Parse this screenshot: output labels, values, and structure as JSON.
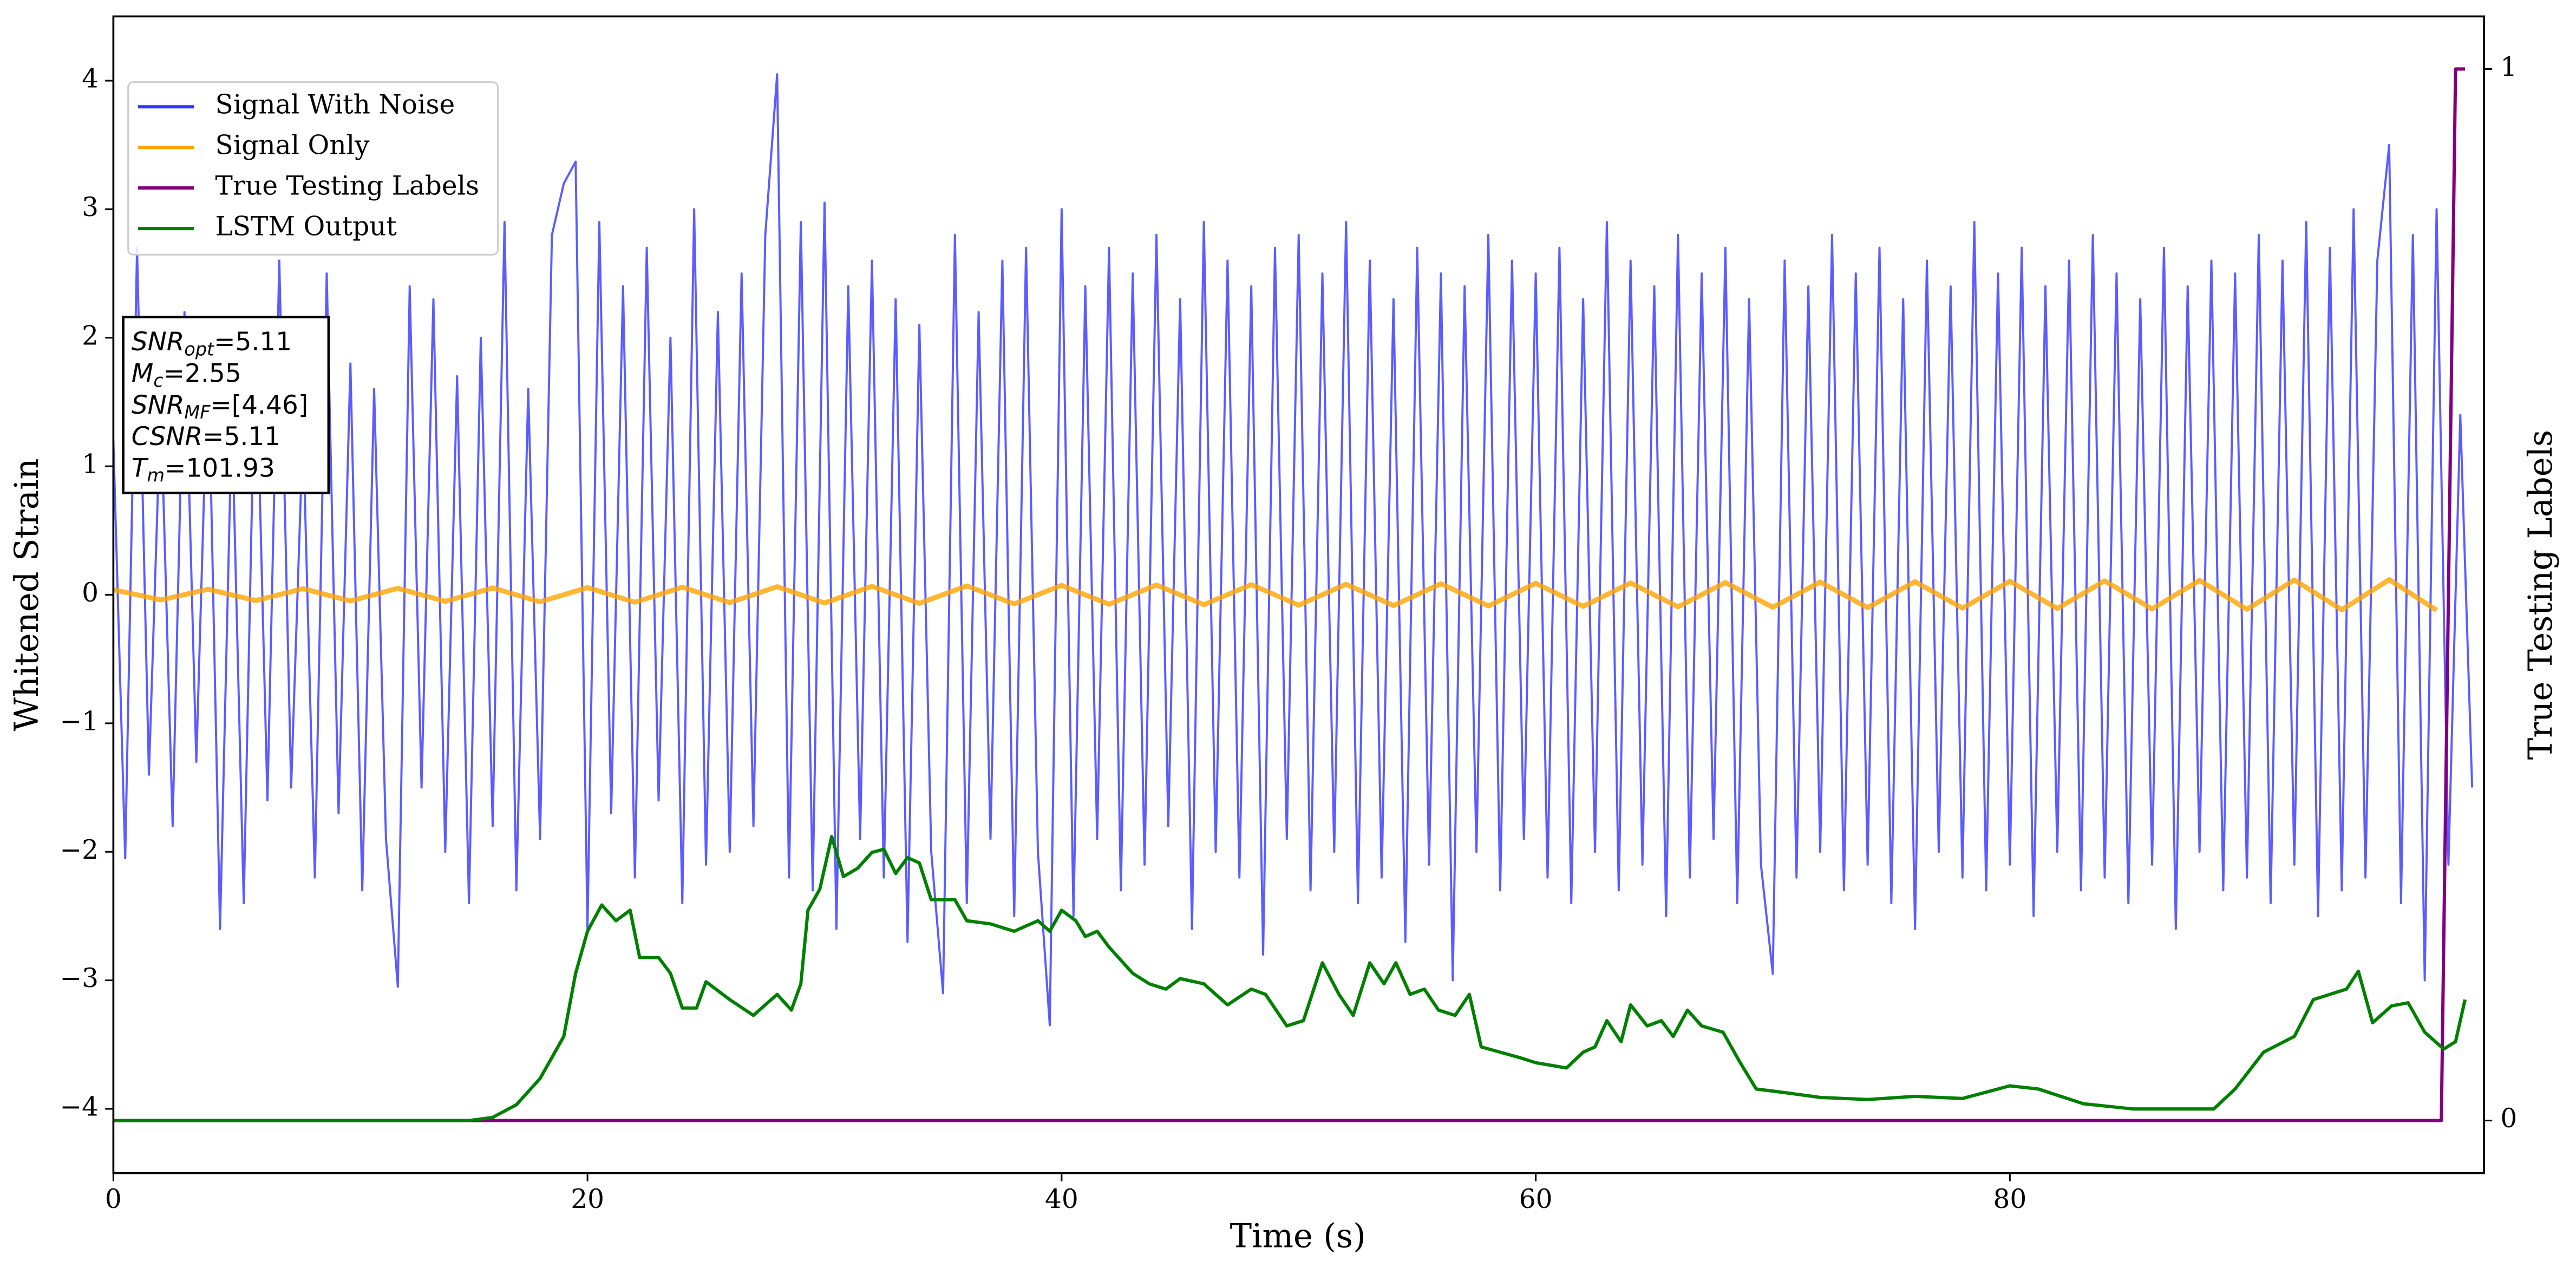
{
  "chart_data": {
    "type": "line",
    "xlabel": "Time (s)",
    "ylabel": "Whitened Strain",
    "y2label": "True Testing Labels",
    "xlim": [
      0,
      100
    ],
    "ylim": [
      -4.5,
      4.5
    ],
    "y2lim": [
      -0.05,
      1.05
    ],
    "xticks": [
      0,
      20,
      40,
      60,
      80
    ],
    "yticks": [
      {
        "value": -4,
        "label": "−4"
      },
      {
        "value": -3,
        "label": "−3"
      },
      {
        "value": -2,
        "label": "−2"
      },
      {
        "value": -1,
        "label": "−1"
      },
      0,
      1,
      2,
      3,
      4
    ],
    "y2ticks": [
      0,
      1
    ],
    "grid": false,
    "legend": "upper left",
    "annotation": [
      {
        "symbol": "SNR",
        "subscript": "opt",
        "text": "=5.11"
      },
      {
        "symbol": "M",
        "subscript": "c",
        "text": "=2.55"
      },
      {
        "symbol": "SNR",
        "subscript": "MF",
        "text": "=[4.46]"
      },
      {
        "symbol": "CSNR",
        "text": "=5.11"
      },
      {
        "symbol": "T",
        "subscript": "m",
        "text": "=101.93"
      }
    ],
    "series": [
      {
        "name": "Signal With Noise",
        "color": "#3333ff",
        "x": [
          0,
          0.5,
          1,
          1.5,
          2,
          2.5,
          3,
          3.5,
          4,
          4.5,
          5,
          5.5,
          6,
          6.5,
          7,
          7.5,
          8,
          8.5,
          9,
          9.5,
          10,
          10.5,
          11,
          11.5,
          12,
          12.5,
          13,
          13.5,
          14,
          14.5,
          15,
          15.5,
          16,
          16.5,
          17,
          17.5,
          18,
          18.5,
          19,
          19.5,
          20,
          20.5,
          21,
          21.5,
          22,
          22.5,
          23,
          23.5,
          24,
          24.5,
          25,
          25.5,
          26,
          26.5,
          27,
          27.5,
          28,
          28.5,
          29,
          29.5,
          30,
          30.5,
          31,
          31.5,
          32,
          32.5,
          33,
          33.5,
          34,
          34.5,
          35,
          35.5,
          36,
          36.5,
          37,
          37.5,
          38,
          38.5,
          39,
          39.5,
          40,
          40.5,
          41,
          41.5,
          42,
          42.5,
          43,
          43.5,
          44,
          44.5,
          45,
          45.5,
          46,
          46.5,
          47,
          47.5,
          48,
          48.5,
          49,
          49.5,
          50,
          50.5,
          51,
          51.5,
          52,
          52.5,
          53,
          53.5,
          54,
          54.5,
          55,
          55.5,
          56,
          56.5,
          57,
          57.5,
          58,
          58.5,
          59,
          59.5,
          60,
          60.5,
          61,
          61.5,
          62,
          62.5,
          63,
          63.5,
          64,
          64.5,
          65,
          65.5,
          66,
          66.5,
          67,
          67.5,
          68,
          68.5,
          69,
          69.5,
          70,
          70.5,
          71,
          71.5,
          72,
          72.5,
          73,
          73.5,
          74,
          74.5,
          75,
          75.5,
          76,
          76.5,
          77,
          77.5,
          78,
          78.5,
          79,
          79.5,
          80,
          80.5,
          81,
          81.5,
          82,
          82.5,
          83,
          83.5,
          84,
          84.5,
          85,
          85.5,
          86,
          86.5,
          87,
          87.5,
          88,
          88.5,
          89,
          89.5,
          90,
          90.5,
          91,
          91.5,
          92,
          92.5,
          93,
          93.5,
          94,
          94.5,
          95,
          95.5,
          96,
          96.5,
          97,
          97.5,
          98,
          98.5,
          99,
          99.5
        ],
        "values": [
          1.2,
          -2.05,
          2.7,
          -1.4,
          1.5,
          -1.8,
          2.2,
          -1.3,
          1.9,
          -2.6,
          1.4,
          -2.4,
          2.1,
          -1.6,
          2.6,
          -1.5,
          1.3,
          -2.2,
          2.5,
          -1.7,
          1.8,
          -2.3,
          1.6,
          -1.9,
          -3.05,
          2.4,
          -1.5,
          2.3,
          -2.0,
          1.7,
          -2.4,
          2.0,
          -1.8,
          2.9,
          -2.3,
          1.6,
          -1.9,
          2.8,
          3.2,
          3.37,
          -2.6,
          2.9,
          -1.7,
          2.4,
          -2.2,
          2.7,
          -1.6,
          2.0,
          -2.4,
          3.0,
          -2.1,
          2.2,
          -2.0,
          2.5,
          -1.8,
          2.8,
          4.05,
          -2.2,
          2.9,
          -2.3,
          3.05,
          -2.6,
          2.4,
          -1.9,
          2.6,
          -2.2,
          2.3,
          -2.7,
          2.1,
          -2.0,
          -3.1,
          2.8,
          -2.4,
          2.2,
          -1.9,
          2.6,
          -2.5,
          2.7,
          -2.0,
          -3.35,
          3.0,
          -2.5,
          2.4,
          -1.9,
          2.7,
          -2.3,
          2.5,
          -2.1,
          2.8,
          -1.8,
          2.3,
          -2.6,
          2.9,
          -2.0,
          2.6,
          -2.2,
          2.4,
          -2.8,
          2.7,
          -1.9,
          2.8,
          -2.3,
          2.5,
          -2.0,
          2.9,
          -2.4,
          2.6,
          -2.2,
          2.3,
          -2.7,
          2.7,
          -2.1,
          2.5,
          -3.0,
          2.4,
          -2.0,
          2.8,
          -2.3,
          2.6,
          -1.9,
          2.5,
          -2.2,
          2.7,
          -2.4,
          2.3,
          -2.0,
          2.9,
          -2.3,
          2.6,
          -2.1,
          2.4,
          -2.5,
          2.8,
          -2.2,
          2.5,
          -1.9,
          2.7,
          -2.4,
          2.3,
          -2.1,
          -2.95,
          2.6,
          -2.2,
          2.4,
          -2.0,
          2.8,
          -2.3,
          2.5,
          -2.1,
          2.7,
          -2.4,
          2.3,
          -2.6,
          2.6,
          -2.0,
          2.4,
          -2.2,
          2.9,
          -2.3,
          2.5,
          -2.1,
          2.7,
          -2.5,
          2.4,
          -2.0,
          2.6,
          -2.3,
          2.8,
          -2.2,
          2.5,
          -2.4,
          2.3,
          -2.1,
          2.7,
          -2.6,
          2.4,
          -2.0,
          2.6,
          -2.3,
          2.5,
          -2.2,
          2.8,
          -2.4,
          2.6,
          -2.1,
          2.9,
          -2.5,
          2.7,
          -2.3,
          3.0,
          -2.2,
          2.6,
          3.5,
          -2.4,
          2.8,
          -3.0,
          3.0,
          -2.1,
          1.4,
          -1.5
        ]
      },
      {
        "name": "Signal Only",
        "color": "#ffa500",
        "x": [
          0,
          2,
          4,
          6,
          8,
          10,
          12,
          14,
          16,
          18,
          20,
          22,
          24,
          26,
          28,
          30,
          32,
          34,
          36,
          38,
          40,
          42,
          44,
          46,
          48,
          50,
          52,
          54,
          56,
          58,
          60,
          62,
          64,
          66,
          68,
          70,
          72,
          74,
          76,
          78,
          80,
          82,
          84,
          86,
          88,
          90,
          92,
          94,
          96,
          98
        ],
        "values": [
          0.04,
          -0.04,
          0.043,
          -0.045,
          0.047,
          -0.048,
          0.05,
          -0.051,
          0.053,
          -0.055,
          0.056,
          -0.058,
          0.059,
          -0.061,
          0.063,
          -0.064,
          0.066,
          -0.067,
          0.069,
          -0.071,
          0.073,
          -0.074,
          0.076,
          -0.077,
          0.079,
          -0.081,
          0.082,
          -0.084,
          0.086,
          -0.087,
          0.089,
          -0.09,
          0.092,
          -0.094,
          0.095,
          -0.097,
          0.099,
          -0.1,
          0.102,
          -0.104,
          0.105,
          -0.107,
          0.108,
          -0.11,
          0.112,
          -0.113,
          0.115,
          -0.117,
          0.118,
          -0.12
        ]
      },
      {
        "name": "True Testing Labels",
        "color": "#800080",
        "axis": "y2",
        "x": [
          0,
          98.2,
          98.8,
          99.2
        ],
        "values": [
          0,
          0,
          1,
          1
        ]
      },
      {
        "name": "LSTM Output",
        "color": "#008000",
        "axis": "y2",
        "x": [
          0,
          15,
          16,
          17,
          18,
          19,
          19.5,
          20,
          20.6,
          21.2,
          21.8,
          22.2,
          23,
          23.5,
          24,
          24.6,
          25,
          26,
          27,
          28,
          28.6,
          29,
          29.3,
          29.8,
          30.3,
          30.8,
          31.4,
          32,
          32.5,
          33,
          33.5,
          34,
          34.5,
          35.5,
          36,
          37,
          38,
          39,
          39.5,
          40,
          40.6,
          41,
          41.5,
          42,
          43,
          43.7,
          44.4,
          45,
          46,
          47,
          48,
          48.6,
          49.5,
          50.2,
          51,
          51.7,
          52.3,
          53,
          53.6,
          54.1,
          54.7,
          55.3,
          55.9,
          56.6,
          57.2,
          57.7,
          59.3,
          60,
          61.3,
          62,
          62.5,
          63,
          63.6,
          64,
          64.7,
          65.3,
          65.8,
          66.4,
          67,
          67.9,
          68.6,
          69.3,
          70.7,
          72,
          74,
          76,
          78,
          80,
          81.2,
          83.1,
          85.2,
          87.3,
          88.6,
          89.5,
          90.7,
          92,
          92.8,
          93.5,
          94.2,
          94.7,
          95.3,
          96.1,
          96.8,
          97.5,
          98.3,
          98.8,
          99.2
        ],
        "values": [
          0,
          0,
          0.003,
          0.015,
          0.04,
          0.08,
          0.14,
          0.18,
          0.205,
          0.19,
          0.2,
          0.155,
          0.155,
          0.14,
          0.107,
          0.107,
          0.132,
          0.115,
          0.1,
          0.12,
          0.105,
          0.13,
          0.2,
          0.22,
          0.27,
          0.232,
          0.24,
          0.255,
          0.258,
          0.235,
          0.25,
          0.245,
          0.21,
          0.21,
          0.19,
          0.187,
          0.18,
          0.19,
          0.18,
          0.2,
          0.19,
          0.175,
          0.18,
          0.165,
          0.14,
          0.13,
          0.125,
          0.135,
          0.13,
          0.11,
          0.125,
          0.12,
          0.09,
          0.095,
          0.15,
          0.12,
          0.1,
          0.15,
          0.13,
          0.15,
          0.12,
          0.125,
          0.105,
          0.1,
          0.12,
          0.07,
          0.06,
          0.055,
          0.05,
          0.065,
          0.07,
          0.095,
          0.075,
          0.11,
          0.09,
          0.095,
          0.08,
          0.105,
          0.09,
          0.084,
          0.056,
          0.03,
          0.026,
          0.022,
          0.02,
          0.023,
          0.021,
          0.033,
          0.03,
          0.016,
          0.011,
          0.011,
          0.011,
          0.03,
          0.065,
          0.08,
          0.115,
          0.12,
          0.125,
          0.142,
          0.093,
          0.109,
          0.112,
          0.084,
          0.068,
          0.075,
          0.115
        ]
      }
    ]
  }
}
